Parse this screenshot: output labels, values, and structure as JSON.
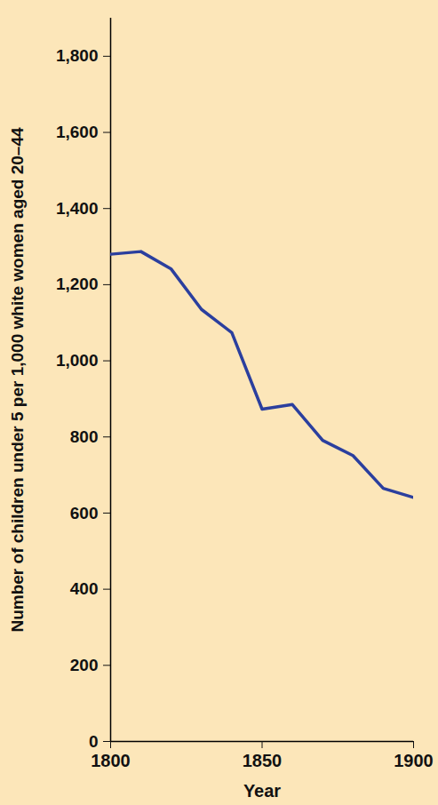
{
  "chart_data": {
    "type": "line",
    "xlabel": "Year",
    "ylabel": "Number of children under 5 per 1,000 white women aged 20–44",
    "x": [
      1800,
      1810,
      1820,
      1830,
      1840,
      1850,
      1860,
      1870,
      1880,
      1890,
      1900
    ],
    "values": [
      1280,
      1287,
      1241,
      1135,
      1074,
      873,
      885,
      791,
      751,
      665,
      641
    ],
    "color": "#2b3f9e",
    "xlim": [
      1800,
      1900
    ],
    "xticks": [
      1800,
      1850,
      1900
    ],
    "ylim": [
      0,
      1900
    ],
    "yticks": [
      0,
      200,
      400,
      600,
      800,
      {
        "value": 1000,
        "label": "1,000"
      },
      {
        "value": 1200,
        "label": "1,200"
      },
      {
        "value": 1400,
        "label": "1,400"
      },
      {
        "value": 1600,
        "label": "1,600"
      },
      {
        "value": 1800,
        "label": "1,800"
      }
    ],
    "grid": false
  }
}
